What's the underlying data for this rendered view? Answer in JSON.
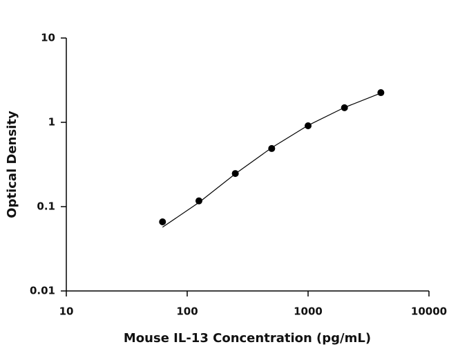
{
  "chart_data": {
    "type": "scatter",
    "xlabel": "Mouse IL-13 Concentration (pg/mL)",
    "ylabel": "Optical Density",
    "xscale": "log",
    "yscale": "log",
    "xlim": [
      10,
      10000
    ],
    "ylim": [
      0.01,
      10
    ],
    "xticks": [
      10,
      100,
      1000,
      10000
    ],
    "yticks": [
      0.01,
      0.1,
      1,
      10
    ],
    "series": [
      {
        "kind": "markers",
        "color": "#000000",
        "x": [
          62.5,
          125,
          250,
          500,
          1000,
          2000,
          4000
        ],
        "values": [
          0.066,
          0.117,
          0.247,
          0.489,
          0.91,
          1.49,
          2.25
        ]
      },
      {
        "kind": "line",
        "color": "#000000",
        "x": [
          62.5,
          125,
          250,
          500,
          1000,
          2000,
          4000
        ],
        "values": [
          0.057,
          0.112,
          0.245,
          0.5,
          0.92,
          1.5,
          2.22
        ]
      }
    ]
  }
}
